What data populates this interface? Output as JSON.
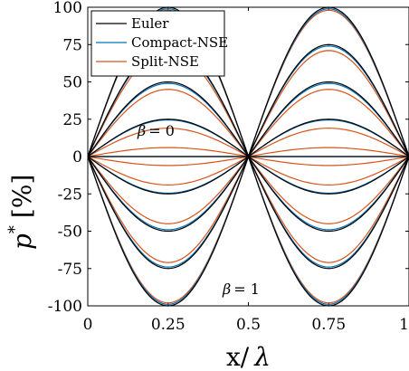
{
  "chart_data": {
    "type": "line",
    "xlabel_text": "x/",
    "xlabel_symbol": "λ",
    "ylabel_symbol": "p",
    "ylabel_sup": "*",
    "ylabel_unit": "[%]",
    "xlim": [
      0,
      1
    ],
    "ylim": [
      -100,
      100
    ],
    "x_ticks": [
      0,
      0.25,
      0.5,
      0.75,
      1
    ],
    "x_tick_labels": [
      "0",
      "0.25",
      "0.5",
      "0.75",
      "1"
    ],
    "y_ticks": [
      100,
      75,
      50,
      25,
      0,
      -25,
      -50,
      -75,
      -100
    ],
    "y_tick_labels": [
      "100",
      "75",
      "50",
      "25",
      "0",
      "-25",
      "-50",
      "-75",
      "-100"
    ],
    "grid": false,
    "legend_position": "top-left",
    "annotations": [
      {
        "text_symbol": "β",
        "text_value": "= 0"
      },
      {
        "text_symbol": "β",
        "text_value": "= 1"
      }
    ],
    "series": [
      {
        "name": "Euler",
        "color": "#000000",
        "amplitudes": [
          100,
          75,
          50,
          25,
          0
        ],
        "offset": 0
      },
      {
        "name": "Compact-NSE",
        "color": "#0072BD",
        "amplitudes": [
          99,
          74,
          49,
          24.5,
          0
        ],
        "offset": 0
      },
      {
        "name": "Split-NSE",
        "color": "#D95319",
        "amplitudes": [
          98,
          71,
          45,
          19,
          6
        ],
        "offset": 0
      }
    ],
    "curve_shape": "y = -A*sin(2*pi*x)",
    "split_zero_curve": "y = 6*sin(pi*x)*sin(pi*x)*sign(0.5-x)"
  }
}
